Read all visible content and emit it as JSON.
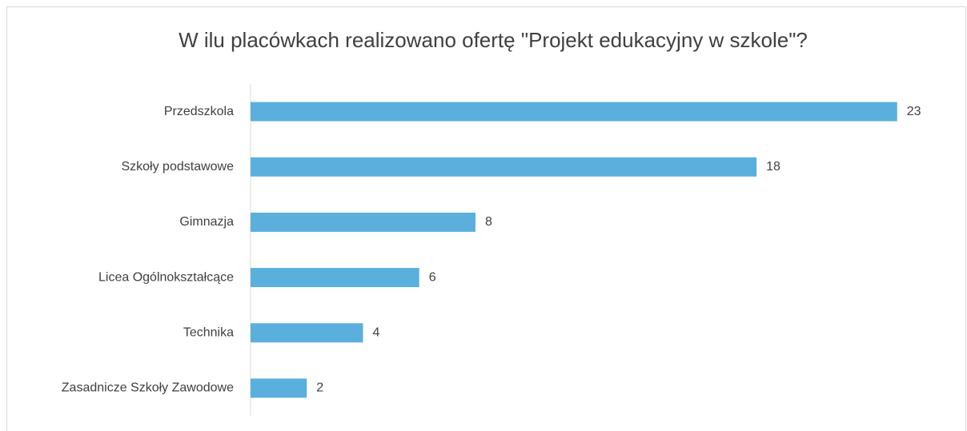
{
  "chart_data": {
    "type": "bar",
    "orientation": "horizontal",
    "title": "W ilu placówkach realizowano ofertę \"Projekt edukacyjny w szkole\"?",
    "categories": [
      "Przedszkola",
      "Szkoły podstawowe",
      "Gimnazja",
      "Licea Ogólnokształcące",
      "Technika",
      "Zasadnicze Szkoły Zawodowe"
    ],
    "values": [
      23,
      18,
      8,
      6,
      4,
      2
    ],
    "color": "#5aafdc",
    "xlim": [
      0,
      25
    ]
  }
}
